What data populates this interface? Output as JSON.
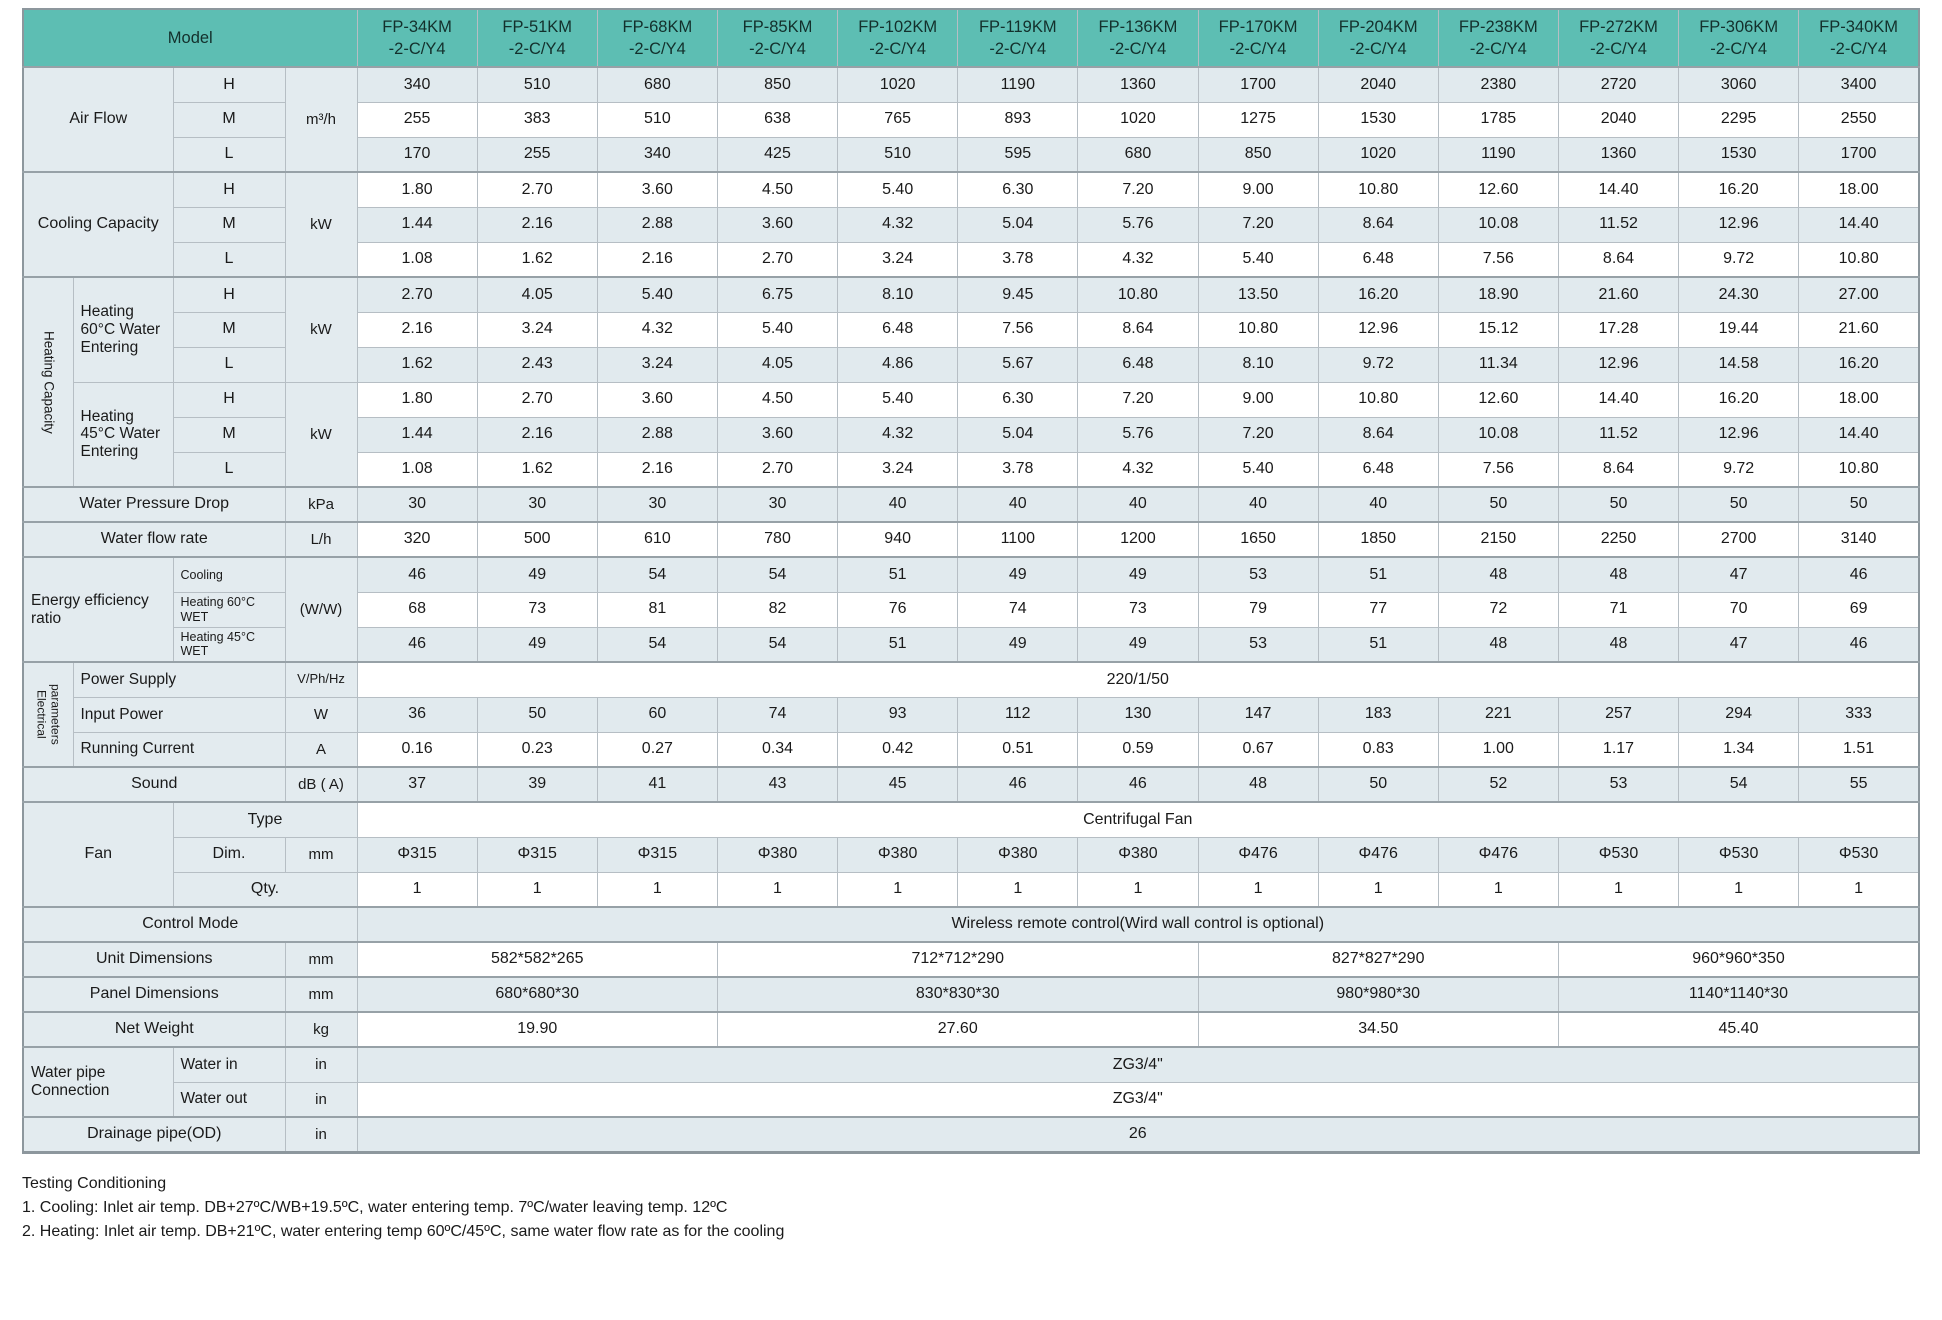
{
  "colors": {
    "header_bg": "#5dbeb3",
    "row_alt": "#e1eaee",
    "label_bg": "#e3ebef",
    "border": "#b6bec4",
    "border_strong": "#97a1a7"
  },
  "table": {
    "model_label": "Model",
    "model_suffix": "-2-C/Y4",
    "models": [
      "FP-34KM",
      "FP-51KM",
      "FP-68KM",
      "FP-85KM",
      "FP-102KM",
      "FP-119KM",
      "FP-136KM",
      "FP-170KM",
      "FP-204KM",
      "FP-238KM",
      "FP-272KM",
      "FP-306KM",
      "FP-340KM"
    ],
    "rows": [
      {
        "sec": true,
        "cells": [
          {
            "t": "Air Flow",
            "cs": 2,
            "rs": 3,
            "k": "lab"
          },
          {
            "t": "H",
            "k": "lab"
          },
          {
            "t": "m³/h",
            "rs": 3,
            "k": "unit"
          }
        ],
        "values": [
          "340",
          "510",
          "680",
          "850",
          "1020",
          "1190",
          "1360",
          "1700",
          "2040",
          "2380",
          "2720",
          "3060",
          "3400"
        ]
      },
      {
        "cells": [
          {
            "t": "M",
            "k": "lab"
          }
        ],
        "values": [
          "255",
          "383",
          "510",
          "638",
          "765",
          "893",
          "1020",
          "1275",
          "1530",
          "1785",
          "2040",
          "2295",
          "2550"
        ]
      },
      {
        "cells": [
          {
            "t": "L",
            "k": "lab"
          }
        ],
        "values": [
          "170",
          "255",
          "340",
          "425",
          "510",
          "595",
          "680",
          "850",
          "1020",
          "1190",
          "1360",
          "1530",
          "1700"
        ]
      },
      {
        "sec": true,
        "cells": [
          {
            "t": "Cooling Capacity",
            "cs": 2,
            "rs": 3,
            "k": "lab"
          },
          {
            "t": "H",
            "k": "lab"
          },
          {
            "t": "kW",
            "rs": 3,
            "k": "unit"
          }
        ],
        "values": [
          "1.80",
          "2.70",
          "3.60",
          "4.50",
          "5.40",
          "6.30",
          "7.20",
          "9.00",
          "10.80",
          "12.60",
          "14.40",
          "16.20",
          "18.00"
        ]
      },
      {
        "cells": [
          {
            "t": "M",
            "k": "lab"
          }
        ],
        "values": [
          "1.44",
          "2.16",
          "2.88",
          "3.60",
          "4.32",
          "5.04",
          "5.76",
          "7.20",
          "8.64",
          "10.08",
          "11.52",
          "12.96",
          "14.40"
        ]
      },
      {
        "cells": [
          {
            "t": "L",
            "k": "lab"
          }
        ],
        "values": [
          "1.08",
          "1.62",
          "2.16",
          "2.70",
          "3.24",
          "3.78",
          "4.32",
          "5.40",
          "6.48",
          "7.56",
          "8.64",
          "9.72",
          "10.80"
        ]
      },
      {
        "sec": true,
        "cells": [
          {
            "t": "Heating Capacity",
            "rs": 6,
            "k": "v"
          },
          {
            "t": "Heating 60°C Water Entering",
            "rs": 3,
            "k": "labL"
          },
          {
            "t": "H",
            "k": "lab"
          },
          {
            "t": "kW",
            "rs": 3,
            "k": "unit"
          }
        ],
        "values": [
          "2.70",
          "4.05",
          "5.40",
          "6.75",
          "8.10",
          "9.45",
          "10.80",
          "13.50",
          "16.20",
          "18.90",
          "21.60",
          "24.30",
          "27.00"
        ]
      },
      {
        "cells": [
          {
            "t": "M",
            "k": "lab"
          }
        ],
        "values": [
          "2.16",
          "3.24",
          "4.32",
          "5.40",
          "6.48",
          "7.56",
          "8.64",
          "10.80",
          "12.96",
          "15.12",
          "17.28",
          "19.44",
          "21.60"
        ]
      },
      {
        "cells": [
          {
            "t": "L",
            "k": "lab"
          }
        ],
        "values": [
          "1.62",
          "2.43",
          "3.24",
          "4.05",
          "4.86",
          "5.67",
          "6.48",
          "8.10",
          "9.72",
          "11.34",
          "12.96",
          "14.58",
          "16.20"
        ]
      },
      {
        "cells": [
          {
            "t": "Heating 45°C Water Entering",
            "rs": 3,
            "k": "labL"
          },
          {
            "t": "H",
            "k": "lab"
          },
          {
            "t": "kW",
            "rs": 3,
            "k": "unit"
          }
        ],
        "values": [
          "1.80",
          "2.70",
          "3.60",
          "4.50",
          "5.40",
          "6.30",
          "7.20",
          "9.00",
          "10.80",
          "12.60",
          "14.40",
          "16.20",
          "18.00"
        ]
      },
      {
        "cells": [
          {
            "t": "M",
            "k": "lab"
          }
        ],
        "values": [
          "1.44",
          "2.16",
          "2.88",
          "3.60",
          "4.32",
          "5.04",
          "5.76",
          "7.20",
          "8.64",
          "10.08",
          "11.52",
          "12.96",
          "14.40"
        ]
      },
      {
        "cells": [
          {
            "t": "L",
            "k": "lab"
          }
        ],
        "values": [
          "1.08",
          "1.62",
          "2.16",
          "2.70",
          "3.24",
          "3.78",
          "4.32",
          "5.40",
          "6.48",
          "7.56",
          "8.64",
          "9.72",
          "10.80"
        ]
      },
      {
        "sec": true,
        "cells": [
          {
            "t": "Water Pressure Drop",
            "cs": 3,
            "k": "lab"
          },
          {
            "t": "kPa",
            "k": "unit"
          }
        ],
        "values": [
          "30",
          "30",
          "30",
          "30",
          "40",
          "40",
          "40",
          "40",
          "40",
          "50",
          "50",
          "50",
          "50"
        ]
      },
      {
        "sec": true,
        "cells": [
          {
            "t": "Water flow rate",
            "cs": 3,
            "k": "lab"
          },
          {
            "t": "L/h",
            "k": "unit"
          }
        ],
        "values": [
          "320",
          "500",
          "610",
          "780",
          "940",
          "1100",
          "1200",
          "1650",
          "1850",
          "2150",
          "2250",
          "2700",
          "3140"
        ]
      },
      {
        "sec": true,
        "cells": [
          {
            "t": "Energy efficiency ratio",
            "cs": 2,
            "rs": 3,
            "k": "labL"
          },
          {
            "t": "Cooling",
            "k": "sub"
          },
          {
            "t": "(W/W)",
            "rs": 3,
            "k": "unit"
          }
        ],
        "values": [
          "46",
          "49",
          "54",
          "54",
          "51",
          "49",
          "49",
          "53",
          "51",
          "48",
          "48",
          "47",
          "46"
        ]
      },
      {
        "cells": [
          {
            "t": "Heating 60°C WET",
            "k": "sub"
          }
        ],
        "values": [
          "68",
          "73",
          "81",
          "82",
          "76",
          "74",
          "73",
          "79",
          "77",
          "72",
          "71",
          "70",
          "69"
        ]
      },
      {
        "cells": [
          {
            "t": "Heating 45°C WET",
            "k": "sub"
          }
        ],
        "values": [
          "46",
          "49",
          "54",
          "54",
          "51",
          "49",
          "49",
          "53",
          "51",
          "48",
          "48",
          "47",
          "46"
        ]
      },
      {
        "sec": true,
        "cells": [
          {
            "t": "Electrical\nparameters",
            "rs": 3,
            "k": "v2"
          },
          {
            "t": "Power Supply",
            "cs": 2,
            "k": "labL"
          },
          {
            "t": "V/Ph/Hz",
            "k": "unitS"
          }
        ],
        "spans": [
          {
            "t": "220/1/50",
            "cs": 13
          }
        ]
      },
      {
        "cells": [
          {
            "t": "Input Power",
            "cs": 2,
            "k": "labL"
          },
          {
            "t": "W",
            "k": "unit"
          }
        ],
        "values": [
          "36",
          "50",
          "60",
          "74",
          "93",
          "112",
          "130",
          "147",
          "183",
          "221",
          "257",
          "294",
          "333"
        ]
      },
      {
        "cells": [
          {
            "t": "Running Current",
            "cs": 2,
            "k": "labL"
          },
          {
            "t": "A",
            "k": "unit"
          }
        ],
        "values": [
          "0.16",
          "0.23",
          "0.27",
          "0.34",
          "0.42",
          "0.51",
          "0.59",
          "0.67",
          "0.83",
          "1.00",
          "1.17",
          "1.34",
          "1.51"
        ]
      },
      {
        "sec": true,
        "cells": [
          {
            "t": "Sound",
            "cs": 3,
            "k": "lab"
          },
          {
            "t": "dB ( A)",
            "k": "unit"
          }
        ],
        "values": [
          "37",
          "39",
          "41",
          "43",
          "45",
          "46",
          "46",
          "48",
          "50",
          "52",
          "53",
          "54",
          "55"
        ]
      },
      {
        "sec": true,
        "cells": [
          {
            "t": "Fan",
            "cs": 2,
            "rs": 3,
            "k": "lab"
          },
          {
            "t": "Type",
            "cs": 2,
            "k": "lab"
          }
        ],
        "spans": [
          {
            "t": "Centrifugal Fan",
            "cs": 13
          }
        ]
      },
      {
        "cells": [
          {
            "t": "Dim.",
            "k": "lab"
          },
          {
            "t": "mm",
            "k": "unit"
          }
        ],
        "values": [
          "Φ315",
          "Φ315",
          "Φ315",
          "Φ380",
          "Φ380",
          "Φ380",
          "Φ380",
          "Φ476",
          "Φ476",
          "Φ476",
          "Φ530",
          "Φ530",
          "Φ530"
        ]
      },
      {
        "cells": [
          {
            "t": "Qty.",
            "cs": 2,
            "k": "lab"
          }
        ],
        "values": [
          "1",
          "1",
          "1",
          "1",
          "1",
          "1",
          "1",
          "1",
          "1",
          "1",
          "1",
          "1",
          "1"
        ]
      },
      {
        "sec": true,
        "cells": [
          {
            "t": "Control Mode",
            "cs": 4,
            "k": "lab"
          }
        ],
        "spans": [
          {
            "t": "Wireless remote control(Wird wall control is optional)",
            "cs": 13
          }
        ]
      },
      {
        "sec": true,
        "cells": [
          {
            "t": "Unit Dimensions",
            "cs": 3,
            "k": "lab"
          },
          {
            "t": "mm",
            "k": "unit"
          }
        ],
        "spans": [
          {
            "t": "582*582*265",
            "cs": 3
          },
          {
            "t": "712*712*290",
            "cs": 4
          },
          {
            "t": "827*827*290",
            "cs": 3
          },
          {
            "t": "960*960*350",
            "cs": 3
          }
        ]
      },
      {
        "sec": true,
        "cells": [
          {
            "t": "Panel Dimensions",
            "cs": 3,
            "k": "lab"
          },
          {
            "t": "mm",
            "k": "unit"
          }
        ],
        "spans": [
          {
            "t": "680*680*30",
            "cs": 3
          },
          {
            "t": "830*830*30",
            "cs": 4
          },
          {
            "t": "980*980*30",
            "cs": 3
          },
          {
            "t": "1140*1140*30",
            "cs": 3
          }
        ]
      },
      {
        "sec": true,
        "cells": [
          {
            "t": "Net Weight",
            "cs": 3,
            "k": "lab"
          },
          {
            "t": "kg",
            "k": "unit"
          }
        ],
        "spans": [
          {
            "t": "19.90",
            "cs": 3
          },
          {
            "t": "27.60",
            "cs": 4
          },
          {
            "t": "34.50",
            "cs": 3
          },
          {
            "t": "45.40",
            "cs": 3
          }
        ]
      },
      {
        "sec": true,
        "cells": [
          {
            "t": "Water pipe Connection",
            "cs": 2,
            "rs": 2,
            "k": "labL"
          },
          {
            "t": "Water in",
            "k": "labL"
          },
          {
            "t": "in",
            "k": "unit"
          }
        ],
        "spans": [
          {
            "t": "ZG3/4\"",
            "cs": 13
          }
        ]
      },
      {
        "cells": [
          {
            "t": "Water out",
            "k": "labL"
          },
          {
            "t": "in",
            "k": "unit"
          }
        ],
        "spans": [
          {
            "t": "ZG3/4\"",
            "cs": 13
          }
        ]
      },
      {
        "sec": true,
        "cells": [
          {
            "t": "Drainage pipe(OD)",
            "cs": 3,
            "k": "lab"
          },
          {
            "t": "in",
            "k": "unit"
          }
        ],
        "spans": [
          {
            "t": "26",
            "cs": 13
          }
        ]
      }
    ]
  },
  "notes": {
    "title": "Testing Conditioning",
    "items": [
      "1. Cooling: Inlet air temp. DB+27ºC/WB+19.5ºC, water entering temp. 7ºC/water leaving temp. 12ºC",
      "2. Heating: Inlet air temp. DB+21ºC, water entering temp 60ºC/45ºC, same water flow rate as for the cooling"
    ]
  }
}
